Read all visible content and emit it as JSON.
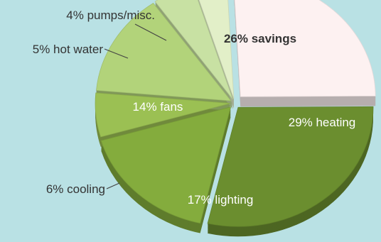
{
  "chart_data": {
    "type": "pie",
    "title": "",
    "slices": [
      {
        "label": "26% savings",
        "value": 26,
        "color": "#fdf1f1",
        "text_color": "#333333",
        "bold": true
      },
      {
        "label": "29% heating",
        "value": 29,
        "color": "#6b8e2f",
        "text_color": "#ffffff",
        "bold": false
      },
      {
        "label": "17% lighting",
        "value": 17,
        "color": "#84ac3d",
        "text_color": "#ffffff",
        "bold": false
      },
      {
        "label": "6% cooling",
        "value": 6,
        "color": "#9bc053",
        "text_color": "#333333",
        "bold": false
      },
      {
        "label": "14% fans",
        "value": 14,
        "color": "#b2d37a",
        "text_color": "#ffffff",
        "bold": false
      },
      {
        "label": "5% hot water",
        "value": 5,
        "color": "#c8e1a3",
        "text_color": "#333333",
        "bold": false
      },
      {
        "label": "4% pumps/misc.",
        "value": 4,
        "color": "#e2efc8",
        "text_color": "#333333",
        "bold": false
      }
    ],
    "style": "3d-exploded",
    "legend": "none"
  }
}
